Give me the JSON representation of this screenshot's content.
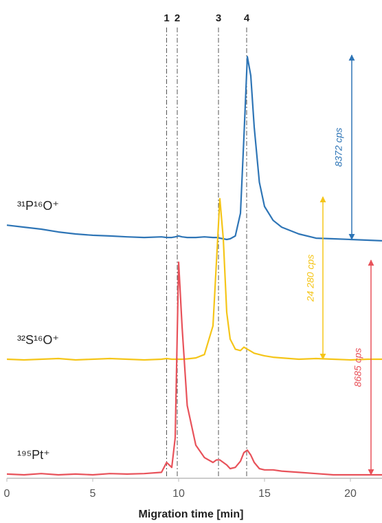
{
  "chart_data": {
    "type": "line",
    "x_label": "Migration time [min]",
    "xlim": [
      0,
      21.84
    ],
    "xticks": [
      0,
      5,
      10,
      15,
      20
    ],
    "x": [
      0,
      1,
      2,
      3,
      4,
      5,
      6,
      7,
      8,
      9,
      9.3,
      9.6,
      9.8,
      10,
      10.2,
      10.5,
      11,
      11.5,
      12,
      12.2,
      12.4,
      12.6,
      12.8,
      13,
      13.3,
      13.6,
      13.8,
      14,
      14.2,
      14.4,
      14.7,
      15,
      15.5,
      16,
      17,
      18,
      19,
      20,
      21,
      21.84
    ],
    "series": [
      {
        "name": "³¹P¹⁶O⁺",
        "color": "#2e75b6",
        "values": [
          650,
          560,
          470,
          340,
          250,
          190,
          160,
          120,
          90,
          120,
          90,
          90,
          120,
          160,
          120,
          90,
          90,
          120,
          90,
          90,
          60,
          30,
          0,
          30,
          160,
          1190,
          4630,
          8300,
          7440,
          5100,
          2600,
          1500,
          870,
          560,
          250,
          60,
          30,
          0,
          -30,
          -60
        ],
        "annotation": {
          "value": 8372,
          "label": "8372 cps"
        }
      },
      {
        "name": "³²S¹⁶O⁺",
        "color": "#f5c518",
        "values": [
          0,
          -100,
          0,
          100,
          -100,
          0,
          100,
          0,
          -100,
          0,
          100,
          0,
          0,
          0,
          0,
          50,
          200,
          700,
          5000,
          14500,
          24000,
          18000,
          7000,
          3000,
          1500,
          1300,
          1800,
          1500,
          1200,
          900,
          700,
          500,
          300,
          200,
          0,
          100,
          0,
          -100,
          0,
          0
        ],
        "annotation": {
          "value": 24280,
          "label": "24 280 cps"
        }
      },
      {
        "name": "¹⁹⁵Pt⁺",
        "color": "#e8525a",
        "values": [
          30,
          0,
          50,
          0,
          30,
          0,
          50,
          30,
          50,
          100,
          500,
          300,
          1500,
          8600,
          6000,
          2800,
          1200,
          700,
          500,
          600,
          600,
          500,
          400,
          250,
          300,
          550,
          900,
          1000,
          800,
          500,
          250,
          200,
          200,
          150,
          100,
          50,
          0,
          0,
          0,
          0
        ],
        "annotation": {
          "value": 8685,
          "label": "8685 cps"
        }
      }
    ],
    "markers": [
      {
        "label": "1",
        "x": 9.3
      },
      {
        "label": "2",
        "x": 9.92
      },
      {
        "label": "3",
        "x": 12.32
      },
      {
        "label": "4",
        "x": 13.96
      }
    ]
  }
}
